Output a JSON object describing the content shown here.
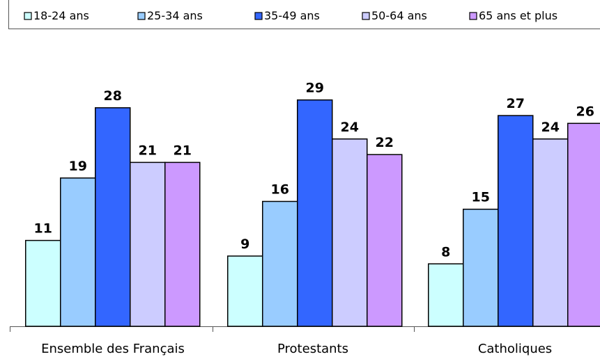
{
  "chart_data": {
    "type": "bar",
    "categories": [
      "Ensemble des Français",
      "Protestants",
      "Catholiques"
    ],
    "series": [
      {
        "name": "18-24 ans",
        "color": "#ccffff",
        "values": [
          11,
          9,
          8
        ]
      },
      {
        "name": "25-34 ans",
        "color": "#99ccff",
        "values": [
          19,
          16,
          15
        ]
      },
      {
        "name": "35-49 ans",
        "color": "#3366ff",
        "values": [
          28,
          29,
          27
        ]
      },
      {
        "name": "50-64 ans",
        "color": "#ccccff",
        "values": [
          21,
          24,
          24
        ]
      },
      {
        "name": "65 ans et plus",
        "color": "#cc99ff",
        "values": [
          21,
          22,
          26
        ]
      }
    ],
    "ylim": [
      0,
      32
    ],
    "legend_position": "top",
    "grid": false,
    "data_labels": true
  }
}
